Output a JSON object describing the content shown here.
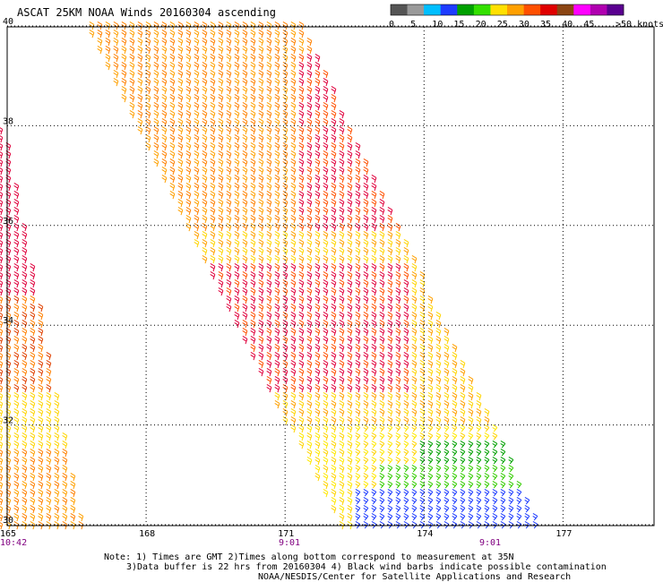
{
  "title": "ASCAT 25KM NOAA Winds 20160304 ascending",
  "legend": {
    "unit_label": ">50 knots",
    "ticks": [
      "0",
      "5",
      "10",
      "15",
      "20",
      "25",
      "30",
      "35",
      "40",
      "45"
    ],
    "colors": [
      "#555555",
      "#9a9a9a",
      "#00bfff",
      "#1e3cff",
      "#00a000",
      "#33e000",
      "#ffe000",
      "#ffa000",
      "#ff5000",
      "#e00000",
      "#8b4513",
      "#ff00ff",
      "#b000b0",
      "#5a0090"
    ]
  },
  "map": {
    "lat_labels": [
      "40",
      "38",
      "36",
      "34",
      "32",
      "30"
    ],
    "lon_labels": [
      "165",
      "168",
      "171",
      "174",
      "177"
    ],
    "time_labels": [
      "10:42",
      "9:01",
      "9:01"
    ],
    "time_color": "#800080"
  },
  "notes": [
    "Note: 1) Times are GMT 2)Times along bottom correspond to measurement at 35N",
    "3)Data buffer is 22 hrs from 20160304 4) Black wind barbs indicate possible contamination",
    "NOAA/NESDIS/Center for Satellite Applications and Research"
  ],
  "swaths": [
    {
      "name": "main-swath",
      "corners_lonlat": [
        [
          166.7,
          40.1
        ],
        [
          171.4,
          40.1
        ],
        [
          176.6,
          30.0
        ],
        [
          172.2,
          30.0
        ]
      ]
    },
    {
      "name": "left-swath",
      "corners_lonlat": [
        [
          164.9,
          38.0
        ],
        [
          165.0,
          38.0
        ],
        [
          166.7,
          30.0
        ],
        [
          164.9,
          30.0
        ]
      ]
    }
  ]
}
